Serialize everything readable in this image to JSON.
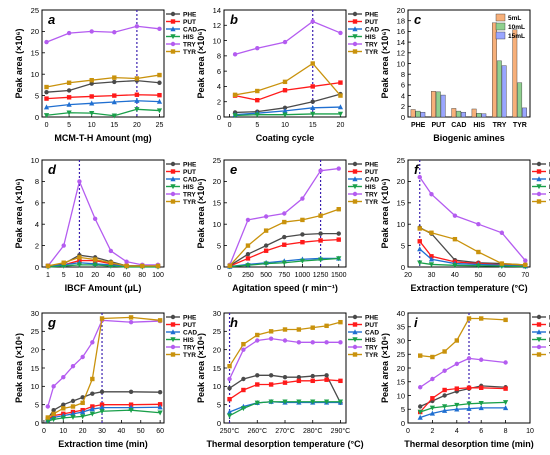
{
  "figure": {
    "panels": [
      "a",
      "b",
      "c",
      "d",
      "e",
      "f",
      "g",
      "h",
      "i"
    ]
  },
  "colors": {
    "PHE": "#4a4a4a",
    "PUT": "#ff1a1a",
    "CAD": "#1f6fd1",
    "HIS": "#1aa04a",
    "TRY": "#b45cf0",
    "TYR": "#c9920c",
    "dashed": "#3a1fb0",
    "bar_5": "#f7b07a",
    "bar_10": "#8fd08f",
    "bar_15": "#9aa6ff"
  },
  "chart_data": [
    {
      "panel": "a",
      "type": "line",
      "ylabel": "Peak area (×10⁶)",
      "xlabel": "MCM-T-H Amount (mg)",
      "x": [
        0,
        5,
        10,
        15,
        20,
        25
      ],
      "xlim": [
        -1,
        26
      ],
      "ylim": [
        0,
        25
      ],
      "xticks": [
        "0",
        "5",
        "10",
        "15",
        "20",
        "25"
      ],
      "yticks": [
        "0",
        "5",
        "10",
        "15",
        "20",
        "25"
      ],
      "vline": 20,
      "series": [
        {
          "name": "PHE",
          "values": [
            5.8,
            6.2,
            7.8,
            8.2,
            8.5,
            8.0
          ]
        },
        {
          "name": "PUT",
          "values": [
            4.3,
            4.6,
            4.8,
            5.0,
            5.2,
            5.1
          ]
        },
        {
          "name": "CAD",
          "values": [
            2.3,
            2.9,
            3.2,
            3.5,
            3.8,
            3.6
          ]
        },
        {
          "name": "HIS",
          "values": [
            0.4,
            1.0,
            0.9,
            0.3,
            1.8,
            1.5
          ]
        },
        {
          "name": "TRY",
          "values": [
            17.5,
            19.6,
            20.0,
            19.8,
            21.2,
            20.6
          ]
        },
        {
          "name": "TYR",
          "values": [
            7.0,
            8.0,
            8.6,
            9.2,
            9.0,
            9.8
          ]
        }
      ]
    },
    {
      "panel": "b",
      "type": "line",
      "ylabel": "Peak area (×10⁶)",
      "xlabel": "Coating cycle",
      "x": [
        1,
        5,
        10,
        15,
        20
      ],
      "xlim": [
        -1,
        21
      ],
      "ylim": [
        0,
        14
      ],
      "xticks": [
        "0",
        "5",
        "10",
        "15",
        "20"
      ],
      "yticks": [
        "0",
        "2",
        "4",
        "6",
        "8",
        "10",
        "12",
        "14"
      ],
      "vline": 15,
      "series": [
        {
          "name": "PHE",
          "values": [
            0.6,
            0.7,
            1.2,
            2.0,
            3.0
          ]
        },
        {
          "name": "PUT",
          "values": [
            2.8,
            2.2,
            3.5,
            4.0,
            4.5
          ]
        },
        {
          "name": "CAD",
          "values": [
            0.3,
            0.5,
            0.8,
            1.2,
            1.3
          ]
        },
        {
          "name": "HIS",
          "values": [
            0.2,
            0.3,
            0.3,
            0.4,
            0.4
          ]
        },
        {
          "name": "TRY",
          "values": [
            8.2,
            9.0,
            9.8,
            12.5,
            11.0
          ]
        },
        {
          "name": "TYR",
          "values": [
            2.9,
            3.4,
            4.6,
            7.0,
            2.8
          ]
        }
      ]
    },
    {
      "panel": "c",
      "type": "bar",
      "ylabel": "Peak area (×10⁶)",
      "xlabel": "Biogenic amines",
      "categories": [
        "PHE",
        "PUT",
        "CAD",
        "HIS",
        "TRY",
        "TYR"
      ],
      "ylim": [
        0,
        20
      ],
      "yticks": [
        "0",
        "2",
        "4",
        "6",
        "8",
        "10",
        "12",
        "14",
        "16",
        "18",
        "20"
      ],
      "legend_position": "top-right",
      "series": [
        {
          "name": "5mL",
          "values": [
            1.4,
            4.8,
            1.6,
            1.5,
            17.6,
            16.3
          ]
        },
        {
          "name": "10mL",
          "values": [
            1.1,
            4.7,
            1.1,
            0.7,
            10.5,
            6.4
          ]
        },
        {
          "name": "15mL",
          "values": [
            0.9,
            4.1,
            0.9,
            0.6,
            9.6,
            1.7
          ]
        }
      ]
    },
    {
      "panel": "d",
      "type": "line",
      "ylabel": "Peak area (×10⁶)",
      "xlabel": "IBCF Amount (μL)",
      "x": [
        "1",
        "5",
        "10",
        "20",
        "40",
        "60",
        "80",
        "100"
      ],
      "ylim": [
        0,
        10
      ],
      "yticks": [
        "0",
        "2",
        "4",
        "6",
        "8",
        "10"
      ],
      "vline_category": "10",
      "series": [
        {
          "name": "PHE",
          "values": [
            0.1,
            0.3,
            1.1,
            0.9,
            0.5,
            0.1,
            0.1,
            0.1
          ]
        },
        {
          "name": "PUT",
          "values": [
            0.1,
            0.2,
            0.6,
            0.6,
            0.3,
            0.1,
            0.1,
            0.1
          ]
        },
        {
          "name": "CAD",
          "values": [
            0.1,
            0.2,
            0.4,
            0.3,
            0.2,
            0.1,
            0.1,
            0.1
          ]
        },
        {
          "name": "HIS",
          "values": [
            0.0,
            0.1,
            0.2,
            0.2,
            0.1,
            0.0,
            0.0,
            0.0
          ]
        },
        {
          "name": "TRY",
          "values": [
            0.1,
            2.0,
            8.0,
            4.5,
            1.5,
            0.5,
            0.2,
            0.2
          ]
        },
        {
          "name": "TYR",
          "values": [
            0.1,
            0.4,
            0.9,
            0.7,
            0.4,
            0.1,
            0.1,
            0.1
          ]
        }
      ]
    },
    {
      "panel": "e",
      "type": "line",
      "ylabel": "Peak area (×10⁶)",
      "xlabel": "Agitation speed (r min⁻¹)",
      "x": [
        0,
        250,
        500,
        750,
        1000,
        1250,
        1500
      ],
      "xlim": [
        -80,
        1600
      ],
      "ylim": [
        0,
        25
      ],
      "xticks": [
        "0",
        "250",
        "500",
        "750",
        "1000",
        "1250",
        "1500"
      ],
      "yticks": [
        "0",
        "5",
        "10",
        "15",
        "20",
        "25"
      ],
      "vline": 1250,
      "series": [
        {
          "name": "PHE",
          "values": [
            0.3,
            3.0,
            5.0,
            7.0,
            7.6,
            7.8,
            7.8
          ]
        },
        {
          "name": "PUT",
          "values": [
            0.2,
            2.0,
            3.8,
            5.2,
            5.8,
            6.2,
            6.4
          ]
        },
        {
          "name": "CAD",
          "values": [
            0.1,
            0.6,
            1.0,
            1.4,
            1.8,
            2.0,
            2.0
          ]
        },
        {
          "name": "HIS",
          "values": [
            0.1,
            0.4,
            0.8,
            1.0,
            1.4,
            1.7,
            2.0
          ]
        },
        {
          "name": "TRY",
          "values": [
            0.5,
            11.0,
            11.8,
            12.5,
            16.0,
            22.5,
            23.0
          ]
        },
        {
          "name": "TYR",
          "values": [
            0.3,
            5.0,
            8.5,
            10.5,
            11.0,
            12.0,
            13.5
          ]
        }
      ]
    },
    {
      "panel": "f",
      "type": "line",
      "ylabel": "Peak area (×10⁶)",
      "xlabel": "Extraction temperature (°C)",
      "x": [
        25,
        30,
        40,
        50,
        60,
        70
      ],
      "xlim": [
        20,
        72
      ],
      "ylim": [
        0,
        25
      ],
      "xticks": [
        "20",
        "30",
        "40",
        "50",
        "60",
        "70"
      ],
      "yticks": [
        "0",
        "5",
        "10",
        "15",
        "20",
        "25"
      ],
      "vline": 25,
      "series": [
        {
          "name": "PHE",
          "values": [
            9.2,
            7.8,
            1.6,
            1.0,
            0.8,
            0.5
          ]
        },
        {
          "name": "PUT",
          "values": [
            6.0,
            2.5,
            1.2,
            0.8,
            0.5,
            0.3
          ]
        },
        {
          "name": "CAD",
          "values": [
            4.2,
            1.8,
            0.8,
            0.6,
            0.4,
            0.2
          ]
        },
        {
          "name": "HIS",
          "values": [
            1.0,
            0.6,
            0.4,
            0.3,
            0.2,
            0.1
          ]
        },
        {
          "name": "TRY",
          "values": [
            21.0,
            17.0,
            12.0,
            10.0,
            8.0,
            1.5
          ]
        },
        {
          "name": "TYR",
          "values": [
            9.0,
            8.0,
            6.5,
            3.5,
            0.8,
            0.5
          ]
        }
      ]
    },
    {
      "panel": "g",
      "type": "line",
      "ylabel": "Peak area (×10⁶)",
      "xlabel": "Extraction time (min)",
      "x": [
        2,
        5,
        10,
        15,
        20,
        25,
        30,
        45,
        60
      ],
      "xlim": [
        -1,
        62
      ],
      "ylim": [
        0,
        30
      ],
      "xticks": [
        "0",
        "10",
        "20",
        "30",
        "40",
        "50",
        "60"
      ],
      "yticks": [
        "0",
        "5",
        "10",
        "15",
        "20",
        "25",
        "30"
      ],
      "vline": 30,
      "series": [
        {
          "name": "PHE",
          "values": [
            1.2,
            3.5,
            5.0,
            6.0,
            7.0,
            8.0,
            8.5,
            8.5,
            8.4
          ]
        },
        {
          "name": "PUT",
          "values": [
            1.0,
            2.0,
            2.5,
            3.0,
            3.5,
            4.5,
            5.0,
            5.0,
            5.1
          ]
        },
        {
          "name": "CAD",
          "values": [
            0.8,
            1.5,
            2.0,
            2.5,
            3.0,
            3.8,
            4.2,
            4.2,
            4.3
          ]
        },
        {
          "name": "HIS",
          "values": [
            0.5,
            1.0,
            1.4,
            1.6,
            1.8,
            2.5,
            3.2,
            3.5,
            2.8
          ]
        },
        {
          "name": "TRY",
          "values": [
            4.5,
            10.0,
            12.5,
            15.5,
            18.0,
            22.0,
            28.0,
            27.5,
            27.8
          ]
        },
        {
          "name": "TYR",
          "values": [
            1.5,
            2.5,
            4.0,
            4.5,
            5.5,
            12.0,
            28.5,
            28.8,
            28.0
          ]
        }
      ]
    },
    {
      "panel": "h",
      "type": "line",
      "ylabel": "Peak area (×10⁶)",
      "xlabel": "Thermal desorption temperature (°C)",
      "x": [
        250,
        255,
        260,
        265,
        270,
        275,
        280,
        285,
        290
      ],
      "xlim": [
        248,
        292
      ],
      "ylim": [
        0,
        30
      ],
      "xticks": [
        "250°C",
        "260°C",
        "270°C",
        "280°C",
        "290°C"
      ],
      "xtick_values": [
        250,
        260,
        270,
        280,
        290
      ],
      "yticks": [
        "0",
        "5",
        "10",
        "15",
        "20",
        "25",
        "30"
      ],
      "vline": 250,
      "series": [
        {
          "name": "PHE",
          "values": [
            9.5,
            12.0,
            13.0,
            13.0,
            12.5,
            12.5,
            12.8,
            13.0,
            5.5
          ]
        },
        {
          "name": "PUT",
          "values": [
            6.5,
            9.0,
            10.5,
            10.5,
            11.0,
            11.5,
            11.5,
            11.8,
            11.5
          ]
        },
        {
          "name": "CAD",
          "values": [
            3.0,
            4.5,
            5.5,
            5.8,
            5.6,
            5.6,
            5.6,
            5.6,
            5.6
          ]
        },
        {
          "name": "HIS",
          "values": [
            2.0,
            4.0,
            5.5,
            5.8,
            5.8,
            5.8,
            5.8,
            5.8,
            5.8
          ]
        },
        {
          "name": "TRY",
          "values": [
            12.0,
            20.0,
            22.5,
            23.0,
            22.5,
            22.0,
            22.0,
            22.0,
            22.0
          ]
        },
        {
          "name": "TYR",
          "values": [
            15.5,
            21.5,
            24.0,
            25.0,
            25.5,
            25.5,
            26.0,
            26.5,
            27.5
          ]
        }
      ]
    },
    {
      "panel": "i",
      "type": "line",
      "ylabel": "Peak area (×10⁶)",
      "xlabel": "Thermal desorption time (min)",
      "x": [
        1,
        2,
        3,
        4,
        5,
        6,
        8
      ],
      "xlim": [
        0,
        10
      ],
      "ylim": [
        0,
        40
      ],
      "xticks": [
        "0",
        "2",
        "4",
        "6",
        "8",
        "10"
      ],
      "yticks": [
        "0",
        "5",
        "10",
        "15",
        "20",
        "25",
        "30",
        "35",
        "40"
      ],
      "vline": 5,
      "series": [
        {
          "name": "PHE",
          "values": [
            6.0,
            8.0,
            10.0,
            11.5,
            12.5,
            13.5,
            13.0
          ]
        },
        {
          "name": "PUT",
          "values": [
            4.0,
            9.0,
            12.0,
            12.5,
            12.8,
            12.8,
            12.5
          ]
        },
        {
          "name": "CAD",
          "values": [
            2.0,
            3.5,
            4.5,
            5.0,
            5.2,
            5.5,
            5.5
          ]
        },
        {
          "name": "HIS",
          "values": [
            4.0,
            5.5,
            6.0,
            6.5,
            7.0,
            7.2,
            7.5
          ]
        },
        {
          "name": "TRY",
          "values": [
            13.0,
            16.0,
            19.0,
            21.5,
            23.5,
            23.0,
            22.0
          ]
        },
        {
          "name": "TYR",
          "values": [
            24.5,
            24.0,
            26.0,
            30.0,
            38.0,
            38.0,
            37.5
          ]
        }
      ]
    }
  ]
}
